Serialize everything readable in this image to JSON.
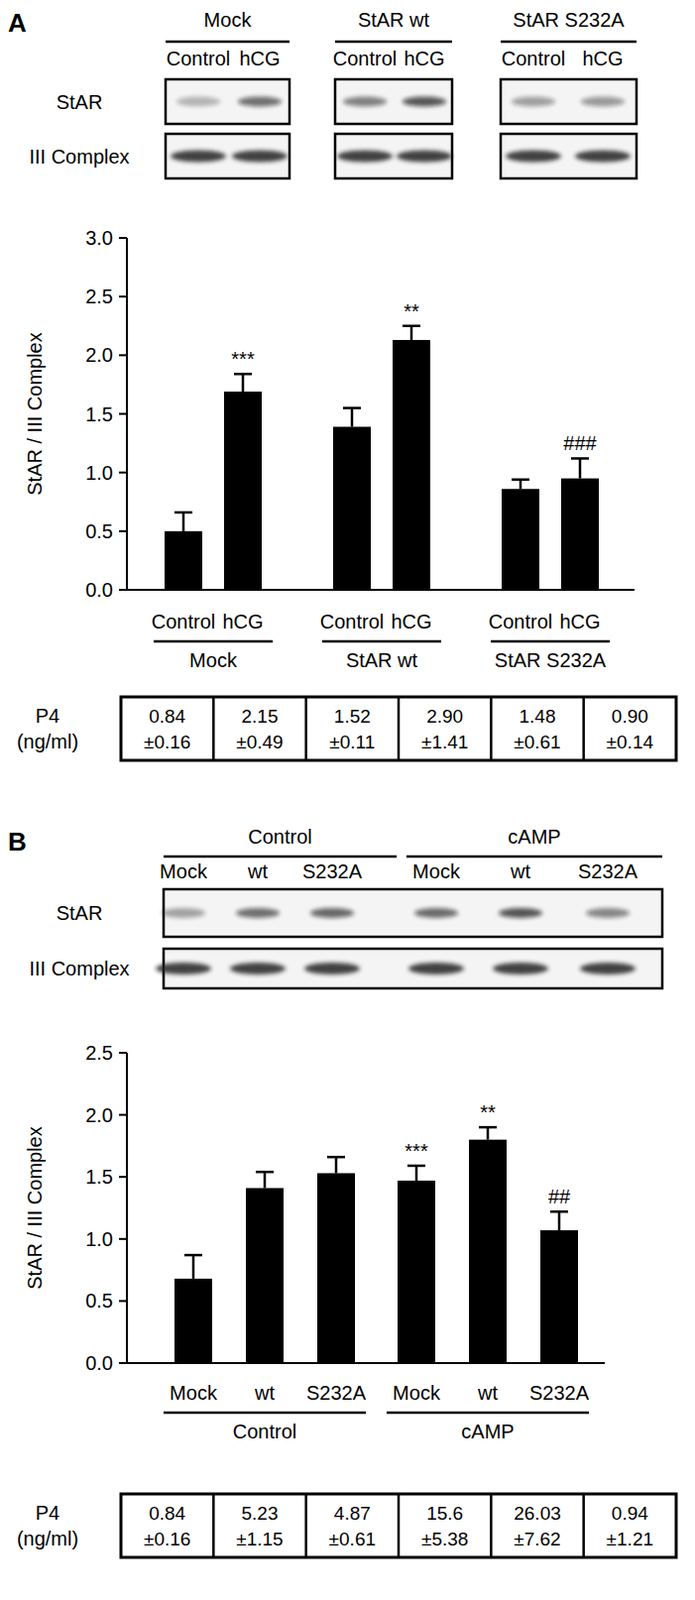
{
  "chart_data": [
    {
      "type": "bar",
      "panel_label": "A",
      "groups": [
        "Mock",
        "StAR wt",
        "StAR S232A"
      ],
      "categories": [
        "Control",
        "hCG",
        "Control",
        "hCG",
        "Control",
        "hCG"
      ],
      "blot_rows": [
        "StAR",
        "III Complex"
      ],
      "y_label": "StAR / III Complex",
      "values": [
        0.5,
        1.69,
        1.39,
        2.13,
        0.86,
        0.95
      ],
      "errors": [
        0.16,
        0.15,
        0.16,
        0.12,
        0.08,
        0.17
      ],
      "annotations": [
        null,
        "***",
        null,
        "**",
        null,
        "###"
      ],
      "color": "#000000",
      "ylim": [
        0,
        3
      ],
      "yticks": [
        {
          "value": 0,
          "label": "0.0"
        },
        0.5,
        {
          "value": 1,
          "label": "1.0"
        },
        1.5,
        {
          "value": 2,
          "label": "2.0"
        },
        2.5,
        {
          "value": 3,
          "label": "3.0"
        }
      ],
      "p4_label": [
        "P4",
        "(ng/ml)"
      ],
      "p4": [
        [
          "0.84",
          "±0.16"
        ],
        [
          "2.15",
          "±0.49"
        ],
        [
          "1.52",
          "±0.11"
        ],
        [
          "2.90",
          "±1.41"
        ],
        [
          "1.48",
          "±0.61"
        ],
        [
          "0.90",
          "±0.14"
        ]
      ]
    },
    {
      "type": "bar",
      "panel_label": "B",
      "groups": [
        "Control",
        "cAMP"
      ],
      "categories": [
        "Mock",
        "wt",
        "S232A",
        "Mock",
        "wt",
        "S232A"
      ],
      "blot_rows": [
        "StAR",
        "III Complex"
      ],
      "y_label": "StAR / III Complex",
      "values": [
        0.68,
        1.41,
        1.53,
        1.47,
        1.8,
        1.07
      ],
      "errors": [
        0.19,
        0.13,
        0.13,
        0.12,
        0.1,
        0.15
      ],
      "annotations": [
        null,
        null,
        null,
        "***",
        "**",
        "##"
      ],
      "color": "#000000",
      "ylim": [
        0,
        2.5
      ],
      "yticks": [
        {
          "value": 0,
          "label": "0.0"
        },
        0.5,
        {
          "value": 1,
          "label": "1.0"
        },
        1.5,
        {
          "value": 2,
          "label": "2.0"
        },
        2.5
      ],
      "p4_label": [
        "P4",
        "(ng/ml)"
      ],
      "p4": [
        [
          "0.84",
          "±0.16"
        ],
        [
          "5.23",
          "±1.15"
        ],
        [
          "4.87",
          "±0.61"
        ],
        [
          "15.6",
          "±5.38"
        ],
        [
          "26.03",
          "±7.62"
        ],
        [
          "0.94",
          "±1.21"
        ]
      ]
    }
  ]
}
